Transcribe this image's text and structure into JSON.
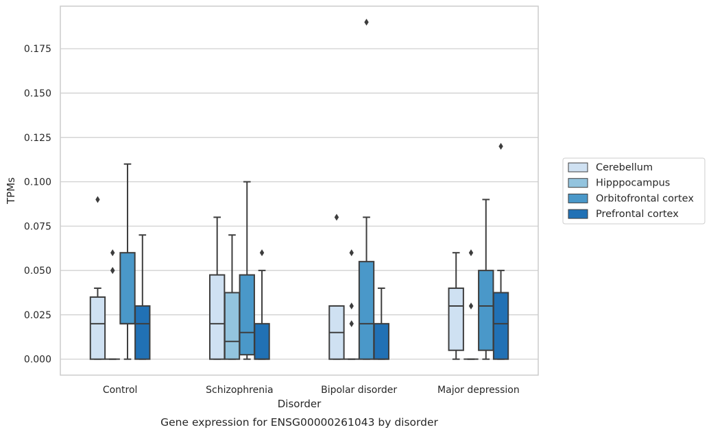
{
  "chart_data": {
    "type": "box",
    "title": "",
    "caption": "Gene expression for ENSG00000261043 by disorder",
    "xlabel": "Disorder",
    "ylabel": "TPMs",
    "ylim": [
      -0.009,
      0.199
    ],
    "yticks": [
      0.0,
      0.025,
      0.05,
      0.075,
      0.1,
      0.125,
      0.15,
      0.175
    ],
    "ytick_labels": [
      "0.000",
      "0.025",
      "0.050",
      "0.075",
      "0.100",
      "0.125",
      "0.150",
      "0.175"
    ],
    "grid": true,
    "legend_position": "right",
    "categories": [
      "Control",
      "Schizophrenia",
      "Bipolar disorder",
      "Major depression"
    ],
    "series": [
      {
        "name": "Cerebellum",
        "color": "#cfe1f2",
        "boxes": [
          {
            "whislo": 0.0,
            "q1": 0.0,
            "med": 0.02,
            "q3": 0.035,
            "whishi": 0.04,
            "fliers": [
              0.09
            ]
          },
          {
            "whislo": 0.0,
            "q1": 0.0,
            "med": 0.02,
            "q3": 0.0475,
            "whishi": 0.08,
            "fliers": []
          },
          {
            "whislo": 0.0,
            "q1": 0.0,
            "med": 0.015,
            "q3": 0.03,
            "whishi": 0.03,
            "fliers": [
              0.08
            ]
          },
          {
            "whislo": 0.0,
            "q1": 0.005,
            "med": 0.03,
            "q3": 0.04,
            "whishi": 0.06,
            "fliers": []
          }
        ]
      },
      {
        "name": "Hipppocampus",
        "color": "#93c4de",
        "boxes": [
          {
            "whislo": 0.0,
            "q1": 0.0,
            "med": 0.0,
            "q3": 0.0,
            "whishi": 0.0,
            "fliers": [
              0.05,
              0.05,
              0.06
            ]
          },
          {
            "whislo": 0.0,
            "q1": 0.0,
            "med": 0.01,
            "q3": 0.0375,
            "whishi": 0.07,
            "fliers": []
          },
          {
            "whislo": 0.0,
            "q1": 0.0,
            "med": 0.0,
            "q3": 0.0,
            "whishi": 0.0,
            "fliers": [
              0.02,
              0.03,
              0.06
            ]
          },
          {
            "whislo": 0.0,
            "q1": 0.0,
            "med": 0.0,
            "q3": 0.0,
            "whishi": 0.0,
            "fliers": [
              0.03,
              0.06
            ]
          }
        ]
      },
      {
        "name": "Orbitofrontal cortex",
        "color": "#4a98c9",
        "boxes": [
          {
            "whislo": 0.0,
            "q1": 0.02,
            "med": 0.02,
            "q3": 0.06,
            "whishi": 0.11,
            "fliers": []
          },
          {
            "whislo": 0.0,
            "q1": 0.0025,
            "med": 0.015,
            "q3": 0.0475,
            "whishi": 0.1,
            "fliers": []
          },
          {
            "whislo": 0.0,
            "q1": 0.0,
            "med": 0.02,
            "q3": 0.055,
            "whishi": 0.08,
            "fliers": [
              0.19
            ]
          },
          {
            "whislo": 0.0,
            "q1": 0.005,
            "med": 0.03,
            "q3": 0.05,
            "whishi": 0.09,
            "fliers": []
          }
        ]
      },
      {
        "name": "Prefrontal cortex",
        "color": "#2171b5",
        "boxes": [
          {
            "whislo": 0.0,
            "q1": 0.0,
            "med": 0.02,
            "q3": 0.03,
            "whishi": 0.07,
            "fliers": []
          },
          {
            "whislo": 0.0,
            "q1": 0.0,
            "med": 0.0,
            "q3": 0.02,
            "whishi": 0.05,
            "fliers": [
              0.06
            ]
          },
          {
            "whislo": 0.0,
            "q1": 0.0,
            "med": 0.0,
            "q3": 0.02,
            "whishi": 0.04,
            "fliers": []
          },
          {
            "whislo": 0.0,
            "q1": 0.0,
            "med": 0.02,
            "q3": 0.0375,
            "whishi": 0.05,
            "fliers": [
              0.12
            ]
          }
        ]
      }
    ]
  }
}
